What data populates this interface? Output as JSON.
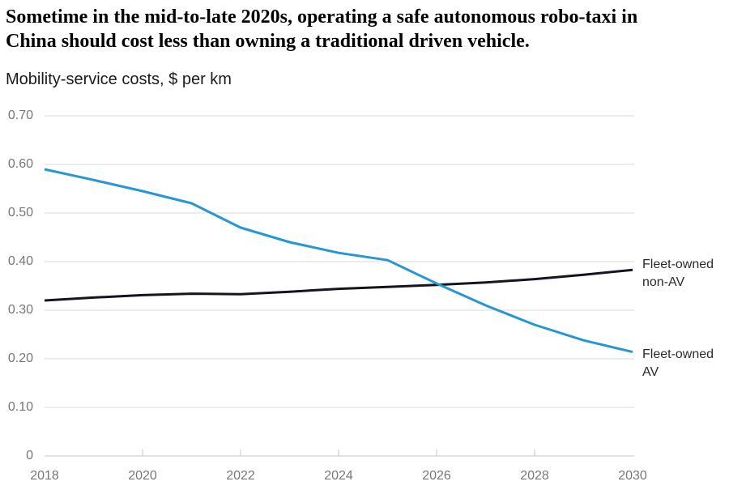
{
  "header": {
    "title_lines": [
      "Sometime in the mid-to-late 2020s, operating a safe autonomous robo-taxi in",
      "China should cost less than owning a traditional driven vehicle."
    ],
    "title_full": "Sometime in the mid-to-late 2020s, operating a safe autonomous robo-taxi in China should cost less than owning a traditional driven vehicle.",
    "subtitle": "Mobility-service costs, $ per km"
  },
  "chart_data": {
    "type": "line",
    "title": "Sometime in the mid-to-late 2020s, operating a safe autonomous robo-taxi in China should cost less than owning a traditional driven vehicle.",
    "ylabel": "Mobility-service costs, $ per km",
    "xlabel": "",
    "x": [
      2018,
      2019,
      2020,
      2021,
      2022,
      2023,
      2024,
      2025,
      2026,
      2027,
      2028,
      2029,
      2030
    ],
    "series": [
      {
        "name": "Fleet-owned non-AV",
        "color": "#15151f",
        "values": [
          0.32,
          0.326,
          0.331,
          0.334,
          0.333,
          0.338,
          0.344,
          0.348,
          0.352,
          0.357,
          0.364,
          0.373,
          0.383
        ]
      },
      {
        "name": "Fleet-owned AV",
        "color": "#2696d4",
        "values": [
          0.59,
          0.568,
          0.545,
          0.52,
          0.47,
          0.44,
          0.418,
          0.403,
          0.355,
          0.31,
          0.27,
          0.238,
          0.214
        ]
      }
    ],
    "ylim": [
      0,
      0.7
    ],
    "xlim": [
      2018,
      2030
    ],
    "yticks": [
      {
        "value": 0.7,
        "label": "0.70"
      },
      {
        "value": 0.6,
        "label": "0.60"
      },
      {
        "value": 0.5,
        "label": "0.50"
      },
      {
        "value": 0.4,
        "label": "0.40"
      },
      {
        "value": 0.3,
        "label": "0.30"
      },
      {
        "value": 0.2,
        "label": "0.20"
      },
      {
        "value": 0.1,
        "label": "0.10"
      },
      {
        "value": 0,
        "label": "0"
      }
    ],
    "xticks": [
      {
        "value": 2018,
        "label": "2018"
      },
      {
        "value": 2020,
        "label": "2020"
      },
      {
        "value": 2022,
        "label": "2022"
      },
      {
        "value": 2024,
        "label": "2024"
      },
      {
        "value": 2026,
        "label": "2026"
      },
      {
        "value": 2028,
        "label": "2028"
      },
      {
        "value": 2030,
        "label": "2030"
      }
    ],
    "tick_mark_years": [
      2020,
      2022,
      2024,
      2026,
      2028
    ],
    "grid": "horizontal",
    "legend_position": "right-edge-labels",
    "style": {
      "grid_color": "#d9d9d9",
      "baseline_color": "#c7c7c7",
      "tick_color": "#c7c7c7",
      "axis_text_color": "#767676",
      "series_label_color": "#2b2b2b",
      "line_width": 3
    }
  }
}
